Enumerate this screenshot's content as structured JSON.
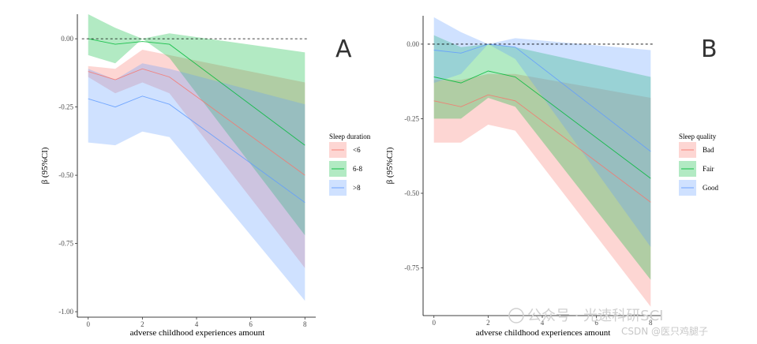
{
  "colors": {
    "lt6": "#F8766D",
    "six8": "#00BA38",
    "gt8": "#619CFF",
    "bad": "#F8766D",
    "fair": "#00BA38",
    "good": "#619CFF"
  },
  "watermark": {
    "main": "公众号 · 光速科研SCI",
    "sub": "CSDN @医只鸡腿子"
  },
  "chart_data": [
    {
      "type": "line",
      "panel_label": "A",
      "xlabel": "adverse childhood experiences amount",
      "ylabel": "β (95%CI)",
      "xlim": [
        -0.4,
        8.4
      ],
      "ylim": [
        -1.02,
        0.09
      ],
      "xticks": [
        0,
        2,
        4,
        6,
        8
      ],
      "xtick_labels": [
        "0",
        "2",
        "4",
        "6",
        "8"
      ],
      "yticks": [
        0,
        -0.25,
        -0.5,
        -0.75,
        -1.0
      ],
      "ytick_labels": [
        "0.00",
        "-0.25",
        "-0.50",
        "-0.75",
        "-1.00"
      ],
      "reference_line": 0,
      "legend_title": "Sleep duration",
      "series": [
        {
          "name": "<6",
          "color_key": "lt6",
          "x": [
            0,
            1,
            2,
            3,
            8
          ],
          "y": [
            -0.12,
            -0.15,
            -0.11,
            -0.14,
            -0.5
          ],
          "lower": [
            -0.14,
            -0.2,
            -0.16,
            -0.2,
            -0.84
          ],
          "upper": [
            -0.1,
            -0.11,
            -0.04,
            -0.06,
            -0.16
          ]
        },
        {
          "name": "6-8",
          "color_key": "six8",
          "x": [
            0,
            1,
            2,
            3,
            8
          ],
          "y": [
            0.0,
            -0.02,
            -0.01,
            -0.02,
            -0.39
          ],
          "lower": [
            -0.06,
            -0.09,
            0.0,
            -0.07,
            -0.72
          ],
          "upper": [
            0.09,
            0.04,
            0.0,
            0.02,
            -0.05
          ]
        },
        {
          "name": ">8",
          "color_key": "gt8",
          "x": [
            0,
            1,
            2,
            3,
            8
          ],
          "y": [
            -0.22,
            -0.25,
            -0.21,
            -0.24,
            -0.6
          ],
          "lower": [
            -0.38,
            -0.39,
            -0.34,
            -0.36,
            -0.96
          ],
          "upper": [
            -0.11,
            -0.15,
            -0.09,
            -0.11,
            -0.24
          ]
        }
      ]
    },
    {
      "type": "line",
      "panel_label": "B",
      "xlabel": "adverse childhood experiences amount",
      "ylabel": "β (95%CI)",
      "xlim": [
        -0.4,
        8.4
      ],
      "ylim": [
        -0.91,
        0.095
      ],
      "xticks": [
        0,
        2,
        4,
        6,
        8
      ],
      "xtick_labels": [
        "0",
        "2",
        "4",
        "6",
        "8"
      ],
      "yticks": [
        0,
        -0.25,
        -0.5,
        -0.75
      ],
      "ytick_labels": [
        "0.00",
        "-0.25",
        "-0.50",
        "-0.75"
      ],
      "reference_line": 0,
      "legend_title": "Sleep quality",
      "series": [
        {
          "name": "Bad",
          "color_key": "bad",
          "x": [
            0,
            1,
            2,
            3,
            8
          ],
          "y": [
            -0.19,
            -0.21,
            -0.17,
            -0.19,
            -0.53
          ],
          "lower": [
            -0.33,
            -0.33,
            -0.27,
            -0.29,
            -0.88
          ],
          "upper": [
            -0.12,
            -0.12,
            -0.1,
            -0.1,
            -0.18
          ]
        },
        {
          "name": "Fair",
          "color_key": "fair",
          "x": [
            0,
            1,
            2,
            3,
            8
          ],
          "y": [
            -0.11,
            -0.13,
            -0.09,
            -0.11,
            -0.45
          ],
          "lower": [
            -0.25,
            -0.25,
            -0.18,
            -0.21,
            -0.79
          ],
          "upper": [
            0.03,
            -0.01,
            0.0,
            -0.01,
            -0.11
          ]
        },
        {
          "name": "Good",
          "color_key": "good",
          "x": [
            0,
            1,
            2,
            3,
            8
          ],
          "y": [
            -0.02,
            -0.03,
            0.0,
            -0.01,
            -0.36
          ],
          "lower": [
            -0.13,
            -0.1,
            0.0,
            -0.05,
            -0.68
          ],
          "upper": [
            0.09,
            0.04,
            0.0,
            0.02,
            -0.02
          ]
        }
      ]
    }
  ]
}
